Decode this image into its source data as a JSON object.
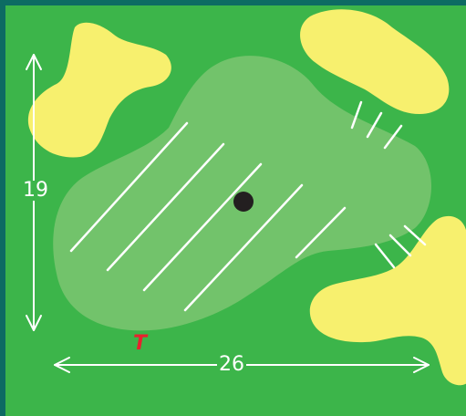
{
  "diagram": {
    "width_label": "26",
    "height_label": "19",
    "tee_label": "T",
    "colors": {
      "border": "#0d6b63",
      "rough": "#3cb54a",
      "green": "#72c36b",
      "bunker": "#f7f06e",
      "hole": "#231f20",
      "tee": "#e8222e",
      "lines": "#ffffff"
    },
    "icons": [
      "hole-icon",
      "tee-marker-icon",
      "slope-hatching"
    ]
  }
}
